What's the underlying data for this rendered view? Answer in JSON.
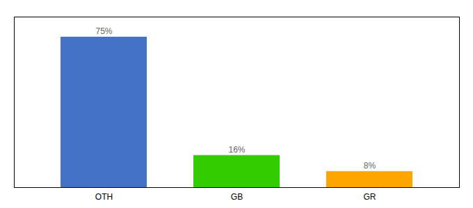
{
  "chart_data": {
    "type": "bar",
    "categories": [
      "OTH",
      "GB",
      "GR"
    ],
    "values": [
      75,
      16,
      8
    ],
    "value_labels": [
      "75%",
      "16%",
      "8%"
    ],
    "colors": [
      "#4472C4",
      "#33CC00",
      "#FFA500"
    ],
    "ylim": [
      0,
      85
    ],
    "data_labels": true,
    "tick_labels": "x",
    "grid": false
  }
}
